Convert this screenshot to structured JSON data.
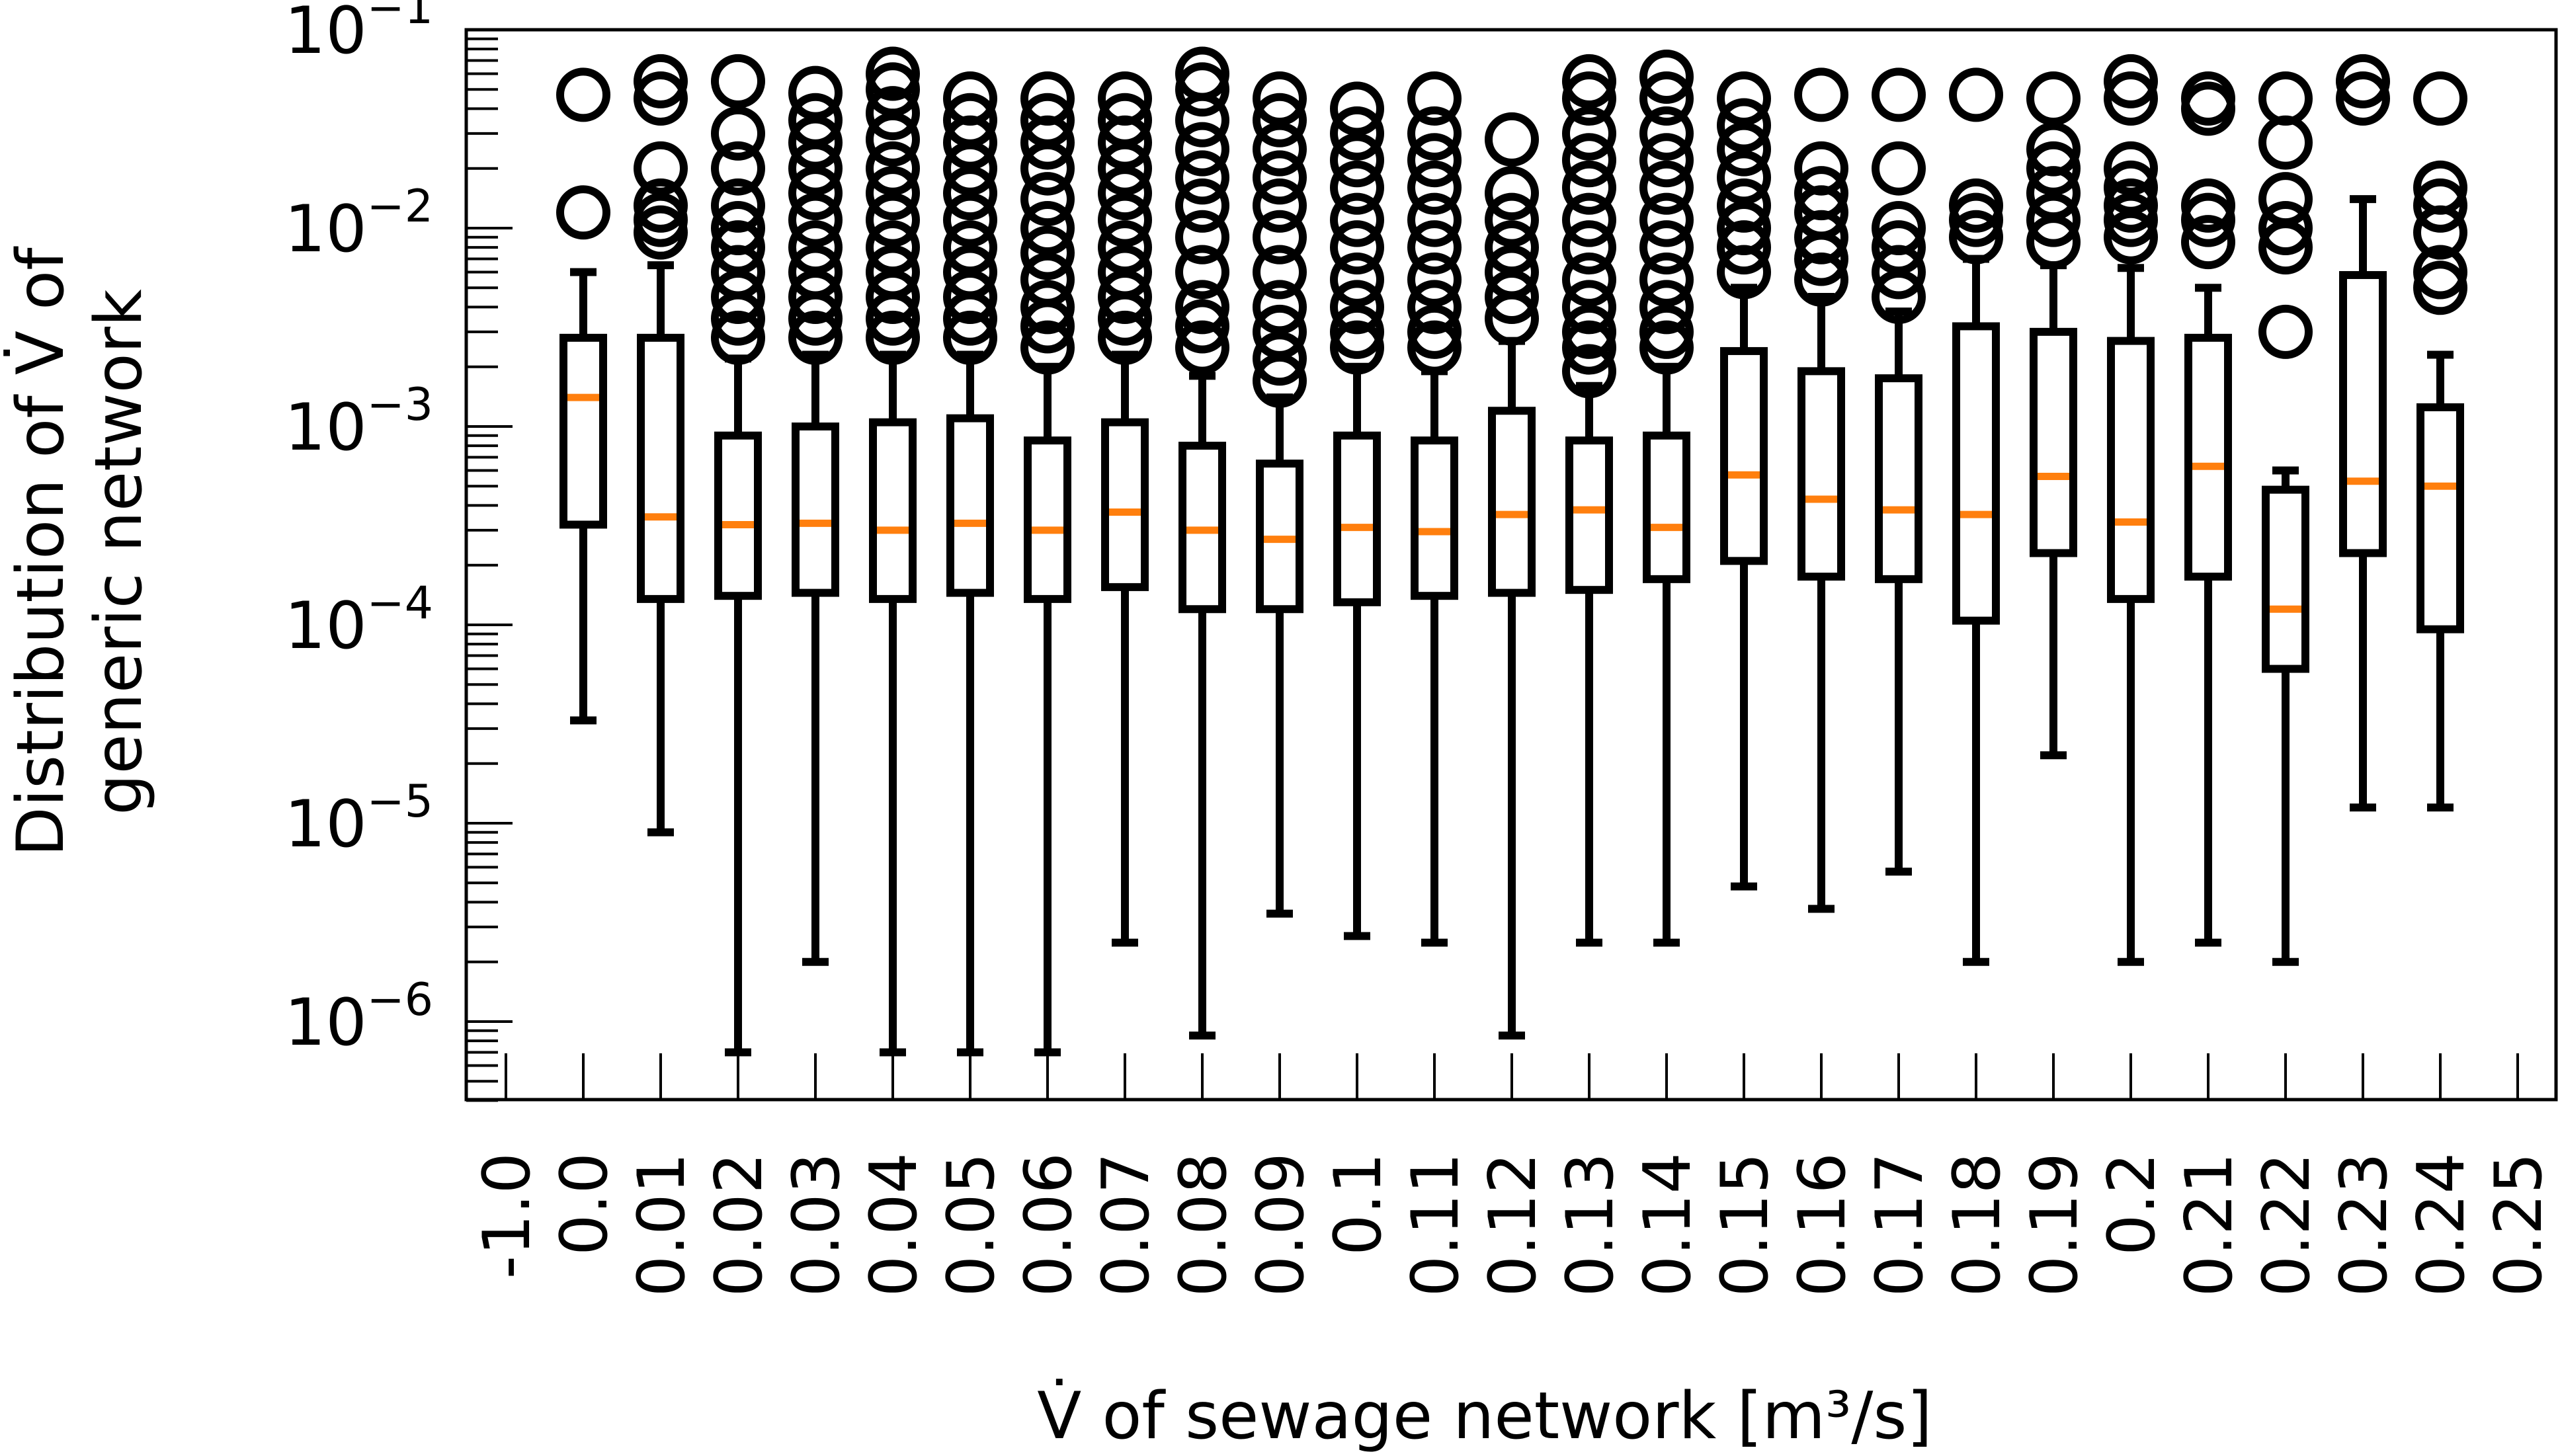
{
  "chart_data": {
    "type": "box",
    "ylabel_lines": [
      "Distribution of V̇ of",
      "generic network"
    ],
    "xlabel": "V̇ of sewage network [m³/s]",
    "yscale": "log",
    "ylim": [
      4e-07,
      0.1
    ],
    "ytick_labels": [
      {
        "base": "10",
        "exp": "−1",
        "value": 0.1
      },
      {
        "base": "10",
        "exp": "−2",
        "value": 0.01
      },
      {
        "base": "10",
        "exp": "−3",
        "value": 0.001
      },
      {
        "base": "10",
        "exp": "−4",
        "value": 0.0001
      },
      {
        "base": "10",
        "exp": "−5",
        "value": 1e-05
      },
      {
        "base": "10",
        "exp": "−6",
        "value": 1e-06
      }
    ],
    "categories": [
      "-1.0",
      "0.0",
      "0.01",
      "0.02",
      "0.03",
      "0.04",
      "0.05",
      "0.06",
      "0.07",
      "0.08",
      "0.09",
      "0.1",
      "0.11",
      "0.12",
      "0.13",
      "0.14",
      "0.15",
      "0.16",
      "0.17",
      "0.18",
      "0.19",
      "0.2",
      "0.21",
      "0.22",
      "0.23",
      "0.24",
      "0.25"
    ],
    "box_color": "#000000",
    "median_color": "#ff7f0e",
    "boxes": [
      {
        "category": "0.0",
        "whislo": 3.3e-05,
        "q1": 0.00032,
        "med": 0.0014,
        "q3": 0.0028,
        "whishi": 0.006,
        "fliers": [
          0.012,
          0.047
        ]
      },
      {
        "category": "0.01",
        "whislo": 9e-06,
        "q1": 0.000135,
        "med": 0.00035,
        "q3": 0.0028,
        "whishi": 0.0065,
        "fliers": [
          0.0095,
          0.011,
          0.013,
          0.02,
          0.045,
          0.055
        ]
      },
      {
        "category": "0.02",
        "whislo": 7e-07,
        "q1": 0.00014,
        "med": 0.00032,
        "q3": 0.0009,
        "whishi": 0.0022,
        "fliers": [
          0.0028,
          0.0035,
          0.0045,
          0.006,
          0.008,
          0.01,
          0.013,
          0.02,
          0.03,
          0.055
        ]
      },
      {
        "category": "0.03",
        "whislo": 2e-06,
        "q1": 0.000145,
        "med": 0.000325,
        "q3": 0.001,
        "whishi": 0.0023,
        "fliers": [
          0.0028,
          0.0035,
          0.0045,
          0.006,
          0.008,
          0.011,
          0.015,
          0.02,
          0.027,
          0.035,
          0.048
        ]
      },
      {
        "category": "0.04",
        "whislo": 7e-07,
        "q1": 0.000135,
        "med": 0.0003,
        "q3": 0.00105,
        "whishi": 0.0023,
        "fliers": [
          0.0028,
          0.0035,
          0.0045,
          0.006,
          0.008,
          0.011,
          0.015,
          0.02,
          0.028,
          0.038,
          0.05,
          0.06
        ]
      },
      {
        "category": "0.05",
        "whislo": 7e-07,
        "q1": 0.000145,
        "med": 0.000325,
        "q3": 0.0011,
        "whishi": 0.0023,
        "fliers": [
          0.0028,
          0.0035,
          0.0045,
          0.006,
          0.008,
          0.011,
          0.015,
          0.02,
          0.027,
          0.035,
          0.045
        ]
      },
      {
        "category": "0.06",
        "whislo": 7e-07,
        "q1": 0.000135,
        "med": 0.0003,
        "q3": 0.00085,
        "whishi": 0.002,
        "fliers": [
          0.0025,
          0.0032,
          0.004,
          0.0055,
          0.0075,
          0.01,
          0.014,
          0.02,
          0.027,
          0.035,
          0.045
        ]
      },
      {
        "category": "0.07",
        "whislo": 2.5e-06,
        "q1": 0.000155,
        "med": 0.00037,
        "q3": 0.00105,
        "whishi": 0.0023,
        "fliers": [
          0.0028,
          0.0035,
          0.0045,
          0.006,
          0.008,
          0.011,
          0.015,
          0.02,
          0.027,
          0.035,
          0.045
        ]
      },
      {
        "category": "0.08",
        "whislo": 8.5e-07,
        "q1": 0.00012,
        "med": 0.0003,
        "q3": 0.0008,
        "whishi": 0.0018,
        "fliers": [
          0.0025,
          0.0032,
          0.004,
          0.006,
          0.009,
          0.013,
          0.018,
          0.025,
          0.035,
          0.05,
          0.06
        ]
      },
      {
        "category": "0.09",
        "whislo": 3.5e-06,
        "q1": 0.00012,
        "med": 0.00027,
        "q3": 0.00065,
        "whishi": 0.0014,
        "fliers": [
          0.0017,
          0.0022,
          0.003,
          0.004,
          0.006,
          0.009,
          0.013,
          0.018,
          0.025,
          0.035,
          0.045
        ]
      },
      {
        "category": "0.1",
        "whislo": 2.7e-06,
        "q1": 0.00013,
        "med": 0.00031,
        "q3": 0.0009,
        "whishi": 0.002,
        "fliers": [
          0.0025,
          0.003,
          0.004,
          0.0055,
          0.008,
          0.011,
          0.016,
          0.022,
          0.03,
          0.04
        ]
      },
      {
        "category": "0.11",
        "whislo": 2.5e-06,
        "q1": 0.00014,
        "med": 0.000295,
        "q3": 0.00085,
        "whishi": 0.0019,
        "fliers": [
          0.0025,
          0.003,
          0.004,
          0.0055,
          0.008,
          0.011,
          0.016,
          0.022,
          0.03,
          0.045
        ]
      },
      {
        "category": "0.12",
        "whislo": 8.5e-07,
        "q1": 0.000145,
        "med": 0.00036,
        "q3": 0.0012,
        "whishi": 0.0027,
        "fliers": [
          0.0035,
          0.0045,
          0.006,
          0.008,
          0.011,
          0.015,
          0.028
        ]
      },
      {
        "category": "0.13",
        "whislo": 2.5e-06,
        "q1": 0.00015,
        "med": 0.00038,
        "q3": 0.00085,
        "whishi": 0.0016,
        "fliers": [
          0.0019,
          0.0025,
          0.003,
          0.004,
          0.0055,
          0.008,
          0.011,
          0.016,
          0.022,
          0.03,
          0.045,
          0.055
        ]
      },
      {
        "category": "0.14",
        "whislo": 2.5e-06,
        "q1": 0.00017,
        "med": 0.00031,
        "q3": 0.0009,
        "whishi": 0.002,
        "fliers": [
          0.0025,
          0.003,
          0.004,
          0.0055,
          0.008,
          0.011,
          0.016,
          0.022,
          0.03,
          0.045,
          0.058
        ]
      },
      {
        "category": "0.15",
        "whislo": 4.8e-06,
        "q1": 0.00021,
        "med": 0.00057,
        "q3": 0.0024,
        "whishi": 0.005,
        "fliers": [
          0.006,
          0.008,
          0.01,
          0.013,
          0.018,
          0.025,
          0.033,
          0.045
        ]
      },
      {
        "category": "0.16",
        "whislo": 3.7e-06,
        "q1": 0.000175,
        "med": 0.00043,
        "q3": 0.0019,
        "whishi": 0.0045,
        "fliers": [
          0.0055,
          0.007,
          0.009,
          0.012,
          0.015,
          0.02,
          0.047
        ]
      },
      {
        "category": "0.17",
        "whislo": 5.7e-06,
        "q1": 0.00017,
        "med": 0.00038,
        "q3": 0.00175,
        "whishi": 0.0038,
        "fliers": [
          0.0045,
          0.006,
          0.008,
          0.01,
          0.02,
          0.047
        ]
      },
      {
        "category": "0.18",
        "whislo": 2e-06,
        "q1": 0.000105,
        "med": 0.00036,
        "q3": 0.0032,
        "whishi": 0.007,
        "fliers": [
          0.009,
          0.011,
          0.013,
          0.047
        ]
      },
      {
        "category": "0.19",
        "whislo": 2.2e-05,
        "q1": 0.00023,
        "med": 0.00056,
        "q3": 0.003,
        "whishi": 0.0065,
        "fliers": [
          0.0085,
          0.011,
          0.015,
          0.02,
          0.025,
          0.045
        ]
      },
      {
        "category": "0.2",
        "whislo": 2e-06,
        "q1": 0.000135,
        "med": 0.00033,
        "q3": 0.0027,
        "whishi": 0.0063,
        "fliers": [
          0.009,
          0.011,
          0.013,
          0.016,
          0.02,
          0.045,
          0.055
        ]
      },
      {
        "category": "0.21",
        "whislo": 2.5e-06,
        "q1": 0.000175,
        "med": 0.00063,
        "q3": 0.0028,
        "whishi": 0.005,
        "fliers": [
          0.0085,
          0.011,
          0.013,
          0.04,
          0.045
        ]
      },
      {
        "category": "0.22",
        "whislo": 2e-06,
        "q1": 6e-05,
        "med": 0.00012,
        "q3": 0.00048,
        "whishi": 0.0006,
        "fliers": [
          0.003,
          0.008,
          0.01,
          0.014,
          0.027,
          0.045
        ]
      },
      {
        "category": "0.23",
        "whislo": 1.2e-05,
        "q1": 0.00023,
        "med": 0.00053,
        "q3": 0.0058,
        "whishi": 0.014,
        "fliers": [
          0.045,
          0.055
        ]
      },
      {
        "category": "0.24",
        "whislo": 1.2e-05,
        "q1": 9.5e-05,
        "med": 0.0005,
        "q3": 0.00125,
        "whishi": 0.0023,
        "fliers": [
          0.005,
          0.006,
          0.0095,
          0.013,
          0.016,
          0.045
        ]
      }
    ]
  }
}
